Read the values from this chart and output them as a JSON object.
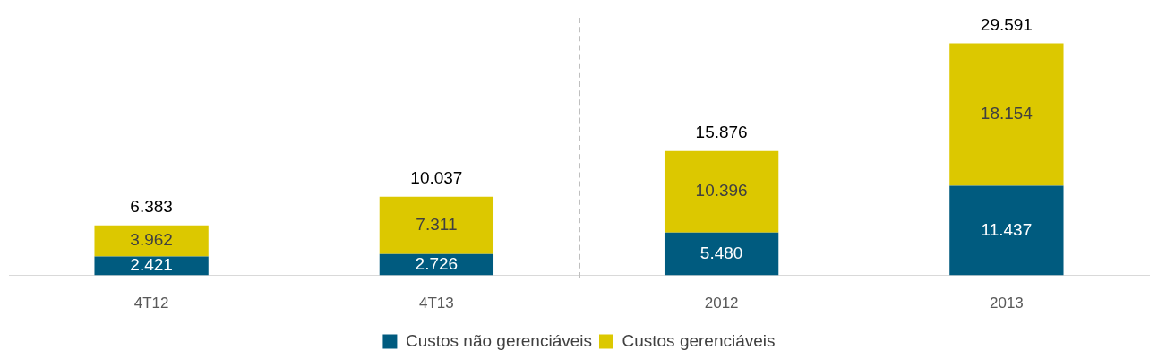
{
  "chart_data": {
    "type": "bar",
    "stacked": true,
    "legend": "bottom",
    "categories": [
      "4T12",
      "4T13",
      "2012",
      "2013"
    ],
    "series": [
      {
        "name": "Custos não gerenciáveis",
        "color": "#005b7f",
        "values": [
          2421,
          2726,
          5480,
          11437
        ],
        "value_labels": [
          "2.421",
          "2.726",
          "5.480",
          "11.437"
        ]
      },
      {
        "name": "Custos gerenciáveis",
        "color": "#dcc800",
        "values": [
          3962,
          7311,
          10396,
          18154
        ],
        "value_labels": [
          "3.962",
          "7.311",
          "10.396",
          "18.154"
        ]
      }
    ],
    "totals": [
      "6.383",
      "10.037",
      "15.876",
      "29.591"
    ]
  }
}
